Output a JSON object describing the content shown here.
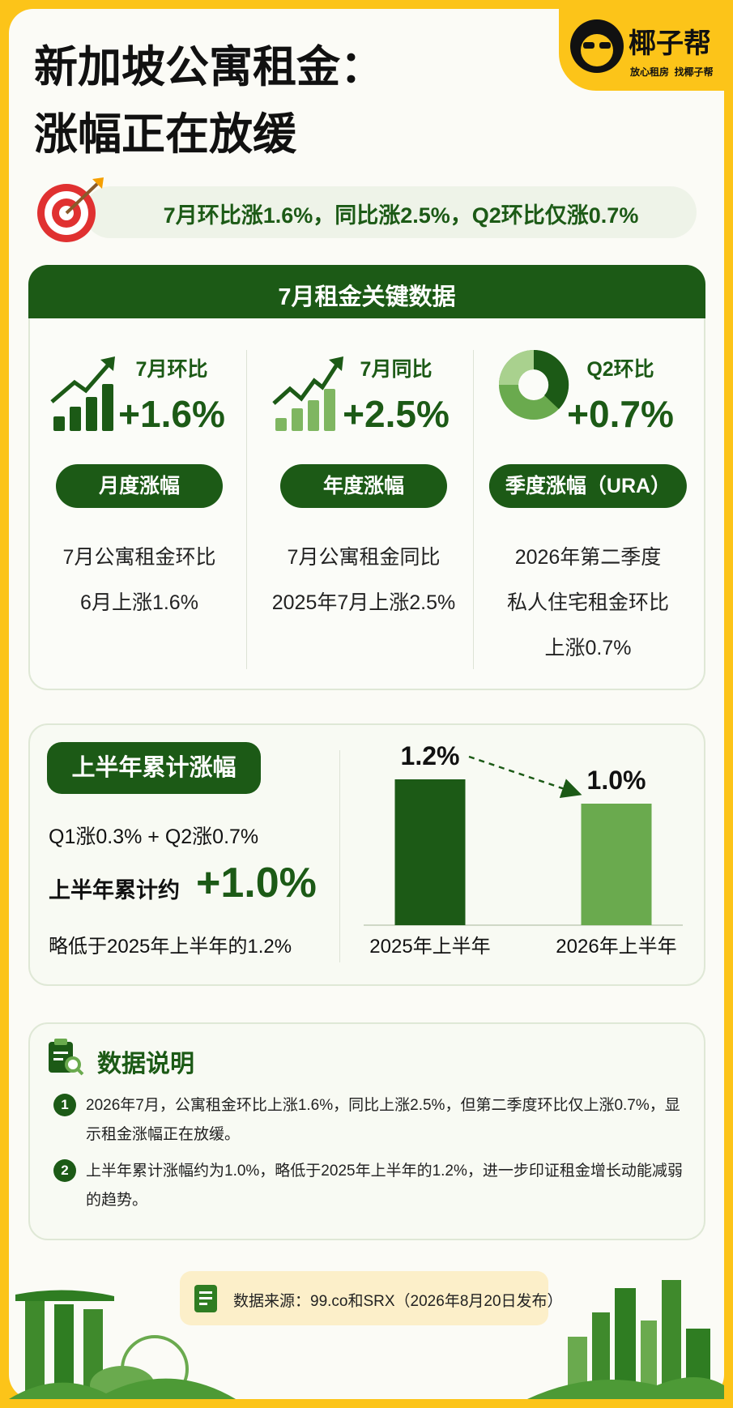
{
  "header": {
    "title_lines": [
      "新加坡公寓租金：",
      "涨幅正在放缓"
    ],
    "brand": "椰子帮",
    "brand_slogan": "放心租房  找椰子帮"
  },
  "headline": "7月环比涨1.6%，同比涨2.5%，Q2环比仅涨0.7%",
  "key_data": {
    "title": "7月租金关键数据",
    "cards": [
      {
        "label": "7月环比",
        "value": "+1.6%",
        "tag": "月度涨幅",
        "description": [
          "7月公寓租金环比",
          "6月上涨1.6%"
        ]
      },
      {
        "label": "7月同比",
        "value": "+2.5%",
        "tag": "年度涨幅",
        "description": [
          "7月公寓租金同比",
          "2025年7月上涨2.5%"
        ]
      },
      {
        "label": "Q2环比",
        "value": "+0.7%",
        "tag": "季度涨幅（URA）",
        "description": [
          "2026年第二季度",
          "私人住宅租金环比",
          "上涨0.7%"
        ]
      }
    ]
  },
  "half_year": {
    "title": "上半年累计涨幅",
    "formula": "Q1涨0.3% + Q2涨0.7%",
    "total_label": "上半年累计约",
    "total_value": "+1.0%",
    "note": "略低于2025年上半年的1.2%",
    "chart": {
      "categories": [
        "2025年上半年",
        "2026年上半年"
      ],
      "values": [
        1.2,
        1.0
      ],
      "value_labels": [
        "1.2%",
        "1.0%"
      ],
      "colors": [
        "#1c5a16",
        "#6aaa4e"
      ]
    }
  },
  "notes": {
    "title": "数据说明",
    "items": [
      {
        "number": "1",
        "text": "2026年7月，公寓租金环比上涨1.6%，同比上涨2.5%，但第二季度环比仅上涨0.7%，显示租金涨幅正在放缓。"
      },
      {
        "number": "2",
        "text": "上半年累计涨幅约为1.0%，略低于2025年上半年的1.2%，进一步印证租金增长动能减弱的趋势。"
      }
    ]
  },
  "source": "数据来源：99.co和SRX（2026年8月20日发布）"
}
